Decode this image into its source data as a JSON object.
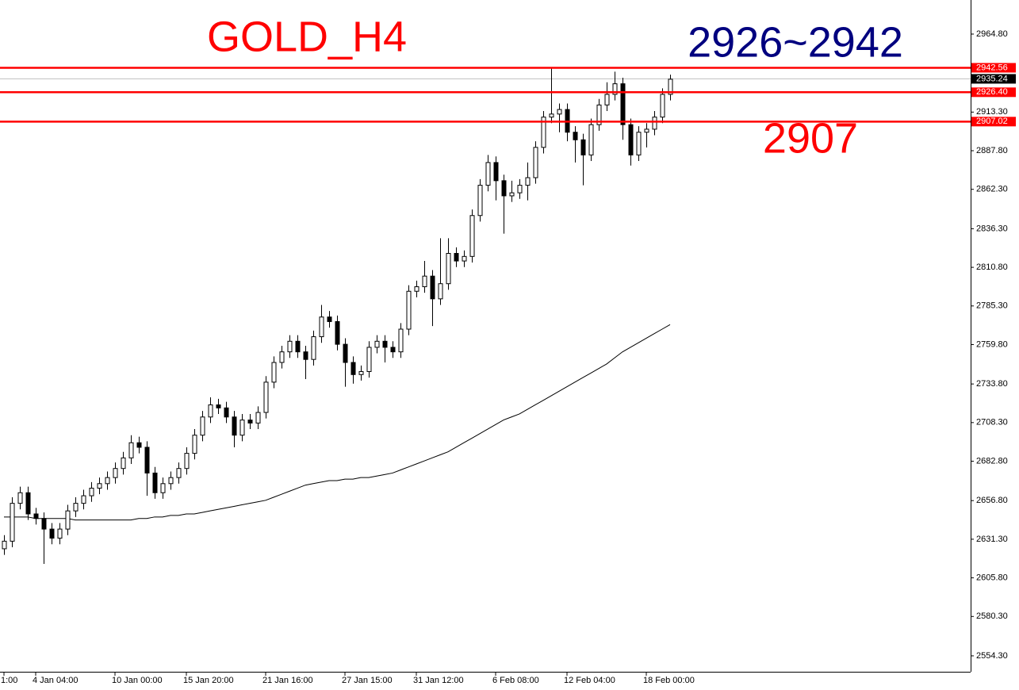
{
  "chart_data": {
    "type": "candlestick",
    "annotations": [
      {
        "text": "GOLD_H4",
        "color": "#ff0000"
      },
      {
        "text": "2926~2942",
        "color": "#00007f"
      },
      {
        "text": "2907",
        "color": "#ff0000"
      }
    ],
    "categories": [
      "1:00",
      null,
      null,
      null,
      "4 Jan 04:00",
      null,
      null,
      null,
      null,
      null,
      null,
      null,
      null,
      null,
      "10 Jan 00:00",
      null,
      null,
      null,
      null,
      null,
      null,
      null,
      null,
      "15 Jan 20:00",
      null,
      null,
      null,
      null,
      null,
      null,
      null,
      null,
      null,
      "21 Jan 16:00",
      null,
      null,
      null,
      null,
      null,
      null,
      null,
      null,
      null,
      "27 Jan 15:00",
      null,
      null,
      null,
      null,
      null,
      null,
      null,
      null,
      "31 Jan 12:00",
      null,
      null,
      null,
      null,
      null,
      null,
      null,
      null,
      null,
      "6 Feb 08:00",
      null,
      null,
      null,
      null,
      null,
      null,
      null,
      null,
      "12 Feb 04:00",
      null,
      null,
      null,
      null,
      null,
      null,
      null,
      null,
      null,
      "18 Feb 00:00",
      null,
      null,
      null
    ],
    "open": [
      2625,
      2630,
      2655,
      2662,
      2648,
      2645,
      2638,
      2632,
      2638,
      2650,
      2655,
      2660,
      2665,
      2668,
      2672,
      2678,
      2685,
      2695,
      2692,
      2675,
      2662,
      2668,
      2672,
      2678,
      2688,
      2700,
      2712,
      2720,
      2718,
      2712,
      2700,
      2710,
      2708,
      2715,
      2735,
      2748,
      2755,
      2762,
      2755,
      2750,
      2765,
      2778,
      2775,
      2760,
      2748,
      2740,
      2742,
      2758,
      2762,
      2758,
      2755,
      2770,
      2795,
      2798,
      2805,
      2790,
      2800,
      2820,
      2815,
      2818,
      2845,
      2865,
      2880,
      2868,
      2858,
      2860,
      2865,
      2870,
      2890,
      2910,
      2912,
      2915,
      2900,
      2895,
      2885,
      2905,
      2918,
      2925,
      2932,
      2905,
      2885,
      2900,
      2902,
      2910,
      2925
    ],
    "high": [
      2634,
      2659,
      2666,
      2666,
      2652,
      2649,
      2642,
      2642,
      2654,
      2659,
      2664,
      2669,
      2672,
      2676,
      2682,
      2689,
      2700,
      2699,
      2696,
      2679,
      2672,
      2676,
      2682,
      2692,
      2704,
      2716,
      2725,
      2724,
      2722,
      2716,
      2714,
      2714,
      2719,
      2739,
      2752,
      2759,
      2766,
      2766,
      2759,
      2769,
      2786,
      2782,
      2779,
      2764,
      2752,
      2746,
      2762,
      2766,
      2766,
      2762,
      2774,
      2799,
      2802,
      2815,
      2809,
      2830,
      2830,
      2824,
      2822,
      2849,
      2869,
      2885,
      2884,
      2872,
      2868,
      2869,
      2880,
      2894,
      2914,
      2942,
      2919,
      2919,
      2904,
      2899,
      2909,
      2922,
      2933,
      2940,
      2936,
      2909,
      2904,
      2906,
      2914,
      2929,
      2938
    ],
    "low": [
      2621,
      2626,
      2651,
      2644,
      2641,
      2615,
      2628,
      2628,
      2634,
      2646,
      2651,
      2656,
      2661,
      2664,
      2668,
      2674,
      2681,
      2688,
      2660,
      2658,
      2658,
      2664,
      2668,
      2674,
      2684,
      2696,
      2708,
      2714,
      2708,
      2692,
      2696,
      2704,
      2704,
      2711,
      2731,
      2744,
      2751,
      2751,
      2737,
      2746,
      2761,
      2771,
      2756,
      2732,
      2734,
      2736,
      2738,
      2754,
      2748,
      2751,
      2751,
      2766,
      2791,
      2794,
      2772,
      2786,
      2796,
      2811,
      2811,
      2814,
      2841,
      2861,
      2855,
      2833,
      2854,
      2856,
      2855,
      2866,
      2886,
      2906,
      2900,
      2894,
      2880,
      2865,
      2881,
      2901,
      2914,
      2921,
      2895,
      2878,
      2881,
      2890,
      2898,
      2906,
      2921
    ],
    "close": [
      2630,
      2655,
      2662,
      2648,
      2645,
      2638,
      2632,
      2638,
      2650,
      2655,
      2660,
      2665,
      2668,
      2672,
      2678,
      2685,
      2695,
      2692,
      2675,
      2662,
      2668,
      2672,
      2678,
      2688,
      2700,
      2712,
      2720,
      2718,
      2712,
      2700,
      2710,
      2708,
      2715,
      2735,
      2748,
      2755,
      2762,
      2755,
      2750,
      2765,
      2778,
      2775,
      2760,
      2748,
      2740,
      2742,
      2758,
      2762,
      2758,
      2755,
      2770,
      2795,
      2798,
      2805,
      2790,
      2800,
      2820,
      2815,
      2818,
      2845,
      2865,
      2880,
      2868,
      2858,
      2860,
      2865,
      2870,
      2890,
      2910,
      2912,
      2915,
      2900,
      2895,
      2885,
      2905,
      2918,
      2925,
      2932,
      2905,
      2885,
      2900,
      2902,
      2910,
      2925,
      2935
    ],
    "ma": {
      "color": "#000000",
      "values": [
        2646,
        2646,
        2646,
        2646,
        2645,
        2645,
        2645,
        2645,
        2645,
        2644,
        2644,
        2644,
        2644,
        2644,
        2644,
        2644,
        2644,
        2645,
        2645,
        2646,
        2646,
        2647,
        2647,
        2648,
        2648,
        2649,
        2650,
        2651,
        2652,
        2653,
        2654,
        2655,
        2656,
        2657,
        2659,
        2661,
        2663,
        2665,
        2667,
        2668,
        2669,
        2670,
        2670,
        2671,
        2671,
        2672,
        2672,
        2673,
        2674,
        2675,
        2677,
        2679,
        2681,
        2683,
        2685,
        2687,
        2689,
        2692,
        2695,
        2698,
        2701,
        2704,
        2707,
        2710,
        2712,
        2714,
        2717,
        2720,
        2723,
        2726,
        2729,
        2732,
        2735,
        2738,
        2741,
        2744,
        2747,
        2751,
        2755,
        2758,
        2761,
        2764,
        2767,
        2770,
        2773
      ]
    },
    "levels": [
      {
        "value": 2942.56,
        "label": "2942.56",
        "color": "#ff0000"
      },
      {
        "value": 2926.4,
        "label": "2926.40",
        "color": "#ff0000"
      },
      {
        "value": 2907.02,
        "label": "2907.02",
        "color": "#ff0000"
      }
    ],
    "price_line": {
      "value": 2935.24,
      "label": "2935.24",
      "color": "#c0c0c0"
    },
    "ylim": [
      2543.8,
      2987.3
    ],
    "yticks": [
      {
        "value": 2554.3,
        "label": "2554.30"
      },
      {
        "value": 2580.3,
        "label": "2580.30"
      },
      {
        "value": 2605.8,
        "label": "2605.80"
      },
      {
        "value": 2631.3,
        "label": "2631.30"
      },
      {
        "value": 2656.8,
        "label": "2656.80"
      },
      {
        "value": 2682.8,
        "label": "2682.80"
      },
      {
        "value": 2708.3,
        "label": "2708.30"
      },
      {
        "value": 2733.8,
        "label": "2733.80"
      },
      {
        "value": 2759.8,
        "label": "2759.80"
      },
      {
        "value": 2785.3,
        "label": "2785.30"
      },
      {
        "value": 2810.8,
        "label": "2810.80"
      },
      {
        "value": 2836.3,
        "label": "2836.30"
      },
      {
        "value": 2862.3,
        "label": "2862.30"
      },
      {
        "value": 2887.8,
        "label": "2887.80"
      },
      {
        "value": 2913.3,
        "label": "2913.30"
      },
      {
        "value": 2964.8,
        "label": "2964.80"
      }
    ]
  }
}
